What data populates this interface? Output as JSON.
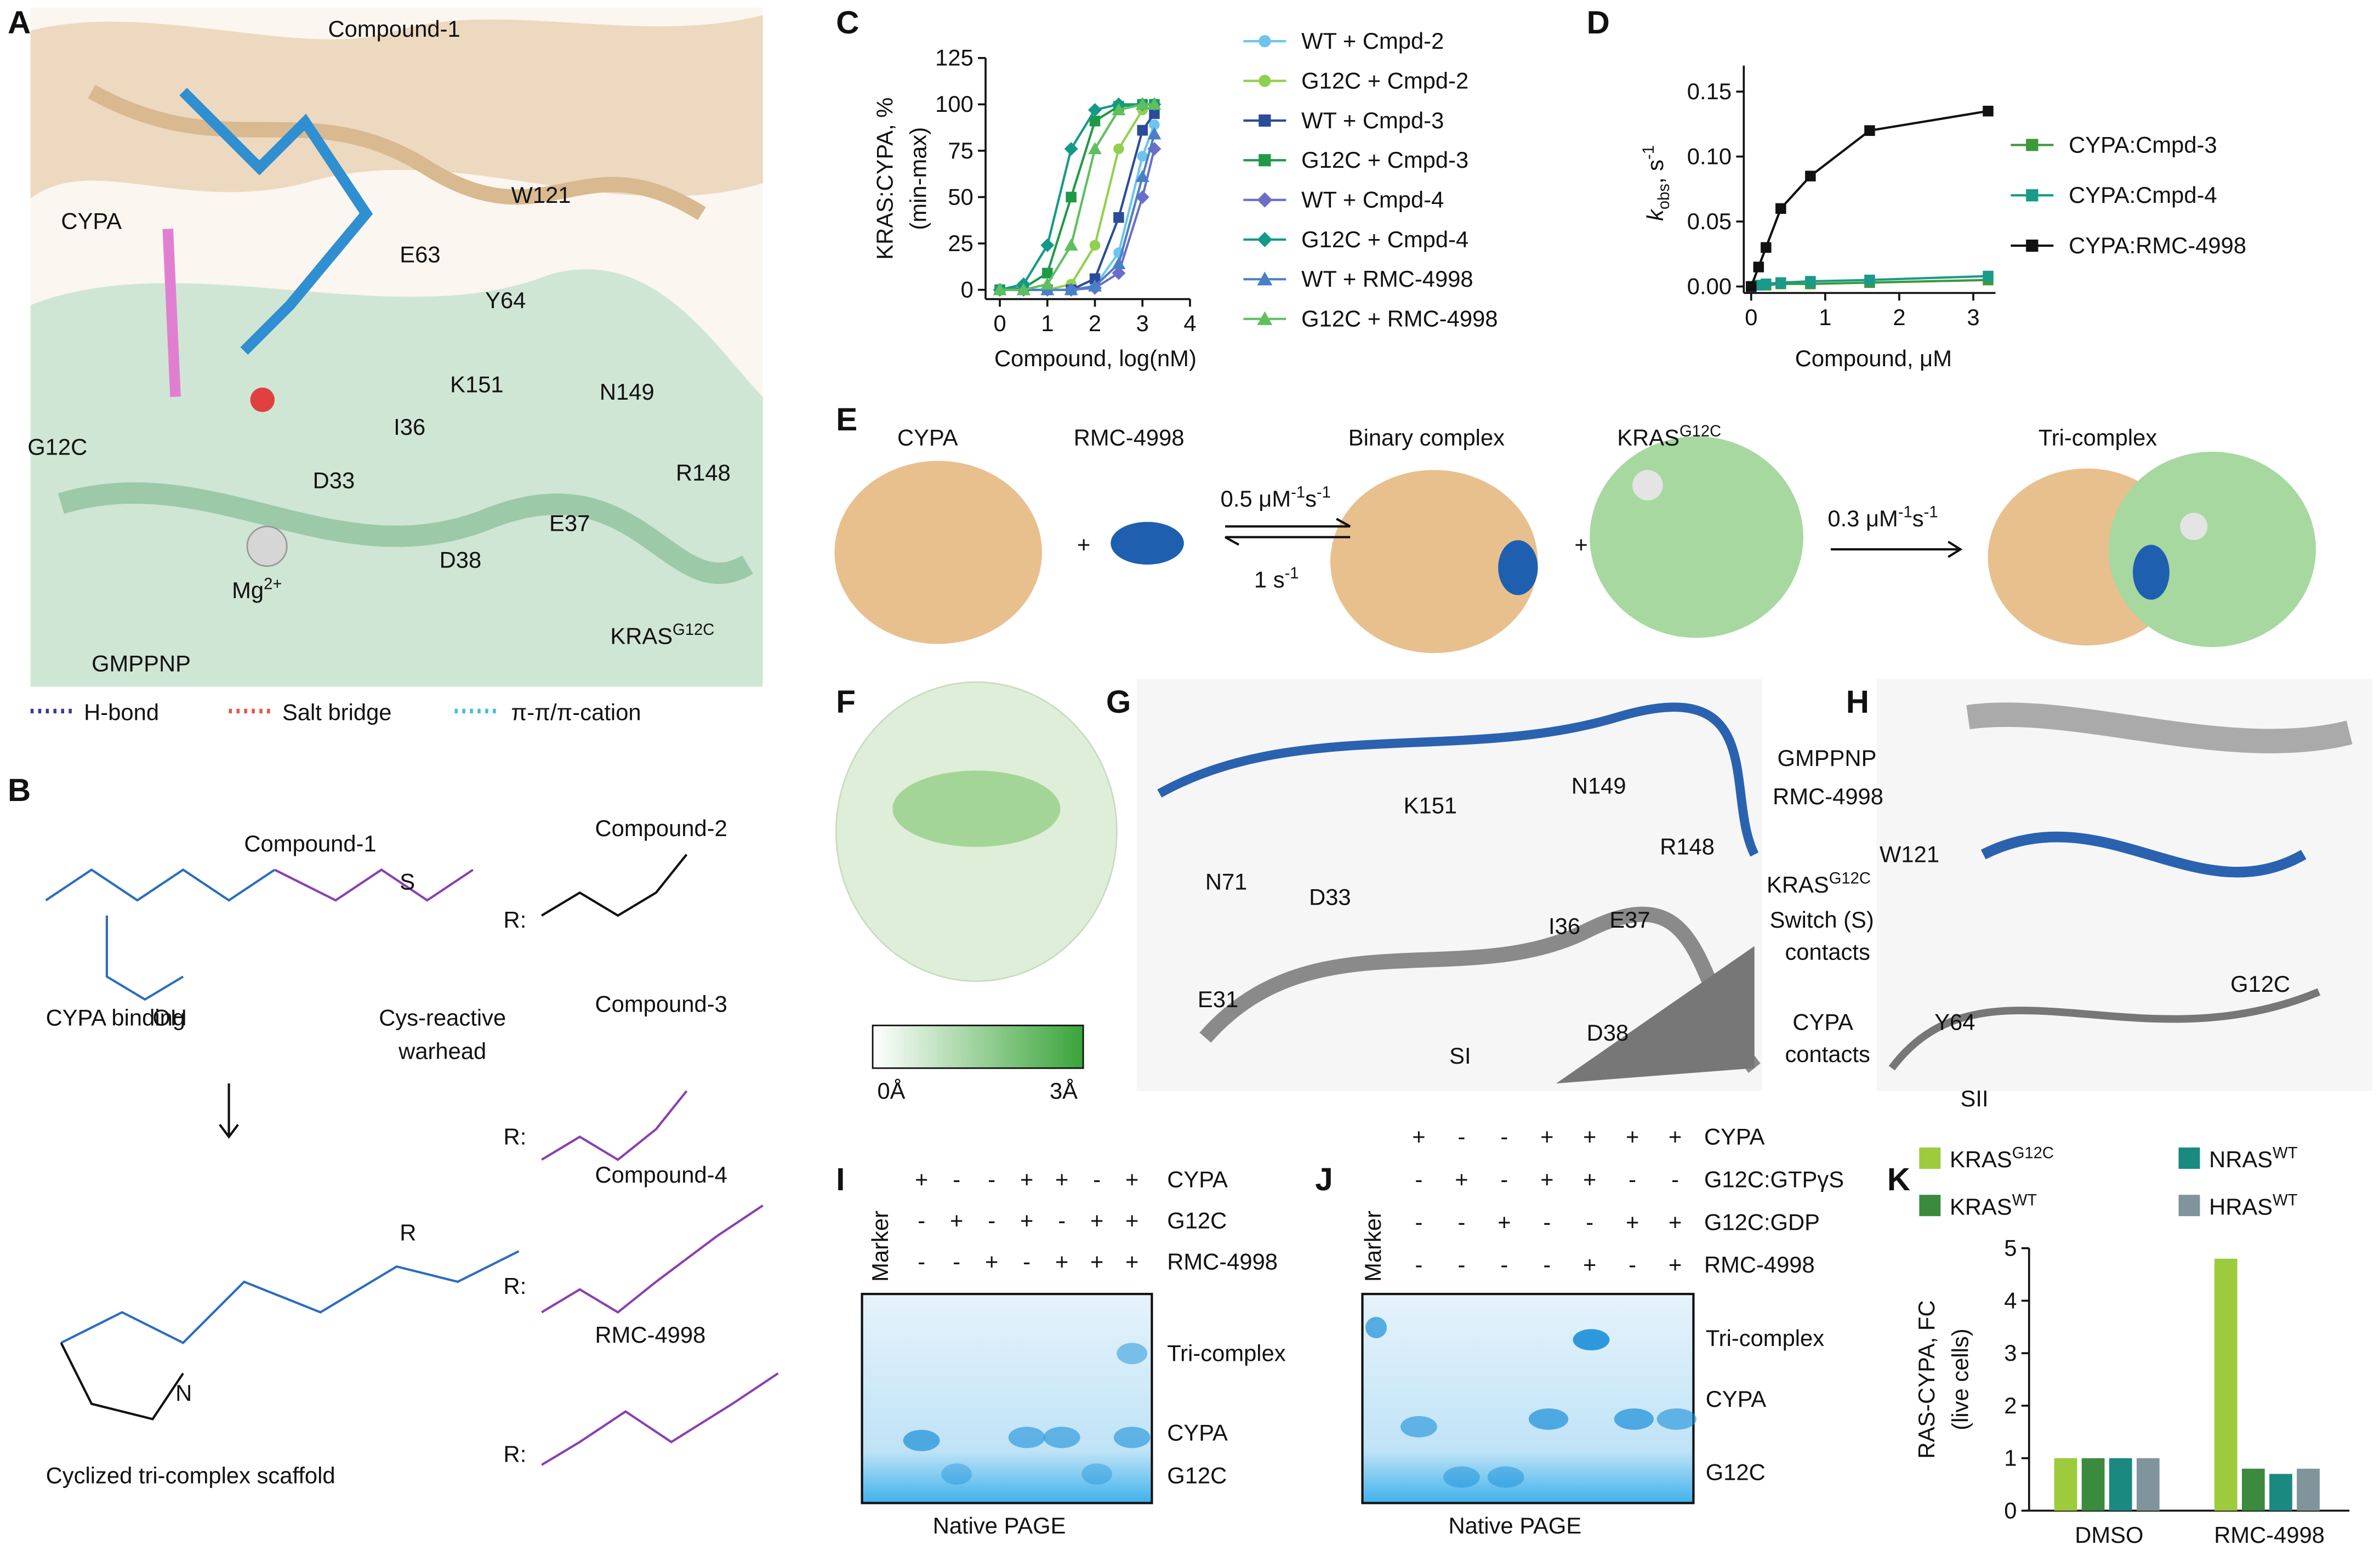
{
  "panels": {
    "a": {
      "label": "A",
      "title": "Compound-1",
      "residues": [
        {
          "text": "CYPA",
          "color": "#c49a66"
        },
        {
          "text": "W121",
          "color": "#c49a66"
        },
        {
          "text": "E63",
          "color": "#1d8a3a"
        },
        {
          "text": "Y64",
          "color": "#1d8a3a"
        },
        {
          "text": "G12C",
          "color": "#1d8a3a"
        },
        {
          "text": "K151",
          "color": "#c49a66"
        },
        {
          "text": "N149",
          "color": "#c49a66"
        },
        {
          "text": "I36",
          "color": "#1d8a3a"
        },
        {
          "text": "D33",
          "color": "#1d8a3a"
        },
        {
          "text": "R148",
          "color": "#c49a66"
        },
        {
          "text": "E37",
          "color": "#1d8a3a"
        },
        {
          "text": "D38",
          "color": "#1d8a3a"
        }
      ],
      "mg": {
        "base": "Mg",
        "sup": "2+"
      },
      "gmppnp": "GMPPNP",
      "kras": {
        "base": "KRAS",
        "sup": "G12C"
      },
      "legend": [
        {
          "text": "H-bond",
          "color": "#3a3a9a"
        },
        {
          "text": "Salt bridge",
          "color": "#e8534a"
        },
        {
          "text": "π-π/π-cation",
          "color": "#40c0e0"
        }
      ]
    },
    "b": {
      "label": "B",
      "compound1": "Compound-1",
      "cypa_binding": "CYPA binding",
      "warhead": [
        "Cys-reactive",
        "warhead"
      ],
      "scaffold": "Cyclized tri-complex scaffold",
      "r": "R:",
      "atoms": [
        "OH",
        "R",
        "S",
        "N"
      ],
      "substituents": [
        "Compound-2",
        "Compound-3",
        "Compound-4",
        "RMC-4998"
      ]
    },
    "e": {
      "label": "E",
      "cypa": "CYPA",
      "rmc": "RMC-4998",
      "binary": "Binary complex",
      "kras": {
        "base": "KRAS",
        "sup": "G12C"
      },
      "tri": "Tri-complex",
      "plus": "+",
      "kon1": [
        "0.5 μM",
        "-1",
        "s",
        "-1"
      ],
      "koff": [
        "1 s",
        "-1"
      ],
      "kon2": [
        "0.3 μM",
        "-1",
        "s",
        "-1"
      ]
    },
    "f": {
      "label": "F",
      "scale": [
        "0Å",
        "3Å"
      ]
    },
    "g": {
      "label": "G",
      "legend": [
        {
          "text": "GMPPNP",
          "color": "#8a8a8a"
        },
        {
          "text": "RMC-4998",
          "color": "#2a62b0"
        }
      ],
      "kras": {
        "base": "KRAS",
        "sup": "G12C",
        "color": "#8a8a8a"
      },
      "switch": {
        "lines": [
          "Switch (S)",
          "contacts"
        ],
        "color": "#1d8a3a"
      },
      "cypa": {
        "lines": [
          "CYPA",
          "contacts"
        ],
        "color": "#c49a66"
      },
      "residues": [
        {
          "text": "K151",
          "color": "#c49a66"
        },
        {
          "text": "N149",
          "color": "#c49a66"
        },
        {
          "text": "N71",
          "color": "#c49a66"
        },
        {
          "text": "D33",
          "color": "#1d8a3a"
        },
        {
          "text": "R148",
          "color": "#c49a66"
        },
        {
          "text": "I36",
          "color": "#1d8a3a"
        },
        {
          "text": "E37",
          "color": "#1d8a3a"
        },
        {
          "text": "E31",
          "color": "#1d8a3a"
        },
        {
          "text": "D38",
          "color": "#1d8a3a"
        },
        {
          "text": "SI",
          "color": "#1d8a3a"
        }
      ]
    },
    "h": {
      "label": "H",
      "residues": [
        {
          "text": "W121",
          "color": "#c49a66"
        },
        {
          "text": "Y64",
          "color": "#1d8a3a"
        },
        {
          "text": "G12C",
          "color": "#1d8a3a"
        },
        {
          "text": "SII",
          "color": "#1d8a3a"
        }
      ]
    },
    "i": {
      "label": "I",
      "marker": "Marker",
      "rows": [
        {
          "name": "CYPA",
          "signs": [
            "+",
            "-",
            "-",
            "+",
            "+",
            "-",
            "+"
          ]
        },
        {
          "name": "G12C",
          "signs": [
            "-",
            "+",
            "-",
            "+",
            "-",
            "+",
            "+"
          ]
        },
        {
          "name": "RMC-4998",
          "signs": [
            "-",
            "-",
            "+",
            "-",
            "+",
            "+",
            "+"
          ]
        }
      ],
      "bands": [
        "Tri-complex",
        "CYPA",
        "G12C"
      ],
      "caption": "Native PAGE"
    },
    "j": {
      "label": "J",
      "marker": "Marker",
      "rows": [
        {
          "name": "CYPA",
          "signs": [
            "+",
            "-",
            "-",
            "+",
            "+",
            "+",
            "+"
          ]
        },
        {
          "name": "G12C:GTPγS",
          "signs": [
            "-",
            "+",
            "-",
            "+",
            "+",
            "-",
            "-"
          ]
        },
        {
          "name": "G12C:GDP",
          "signs": [
            "-",
            "-",
            "+",
            "-",
            "-",
            "+",
            "+"
          ]
        },
        {
          "name": "RMC-4998",
          "signs": [
            "-",
            "-",
            "-",
            "-",
            "+",
            "-",
            "+"
          ]
        }
      ],
      "bands": [
        "Tri-complex",
        "CYPA",
        "G12C"
      ],
      "caption": "Native PAGE"
    }
  },
  "chart_data": [
    {
      "panel": "C",
      "type": "line",
      "ylabel": [
        "KRAS:CYPA, %",
        "(min-max)"
      ],
      "xlabel": "Compound, log(nM)",
      "x": [
        0,
        0.5,
        1,
        1.5,
        2,
        2.5,
        3,
        3.25
      ],
      "xlim": [
        -0.3,
        4
      ],
      "xticks": [
        0,
        1,
        2,
        3,
        4
      ],
      "ylim": [
        -5,
        125
      ],
      "yticks": [
        0,
        25,
        50,
        75,
        100,
        125
      ],
      "series": [
        {
          "name": "WT + Cmpd-2",
          "color": "#6ec4ee",
          "marker": "circle",
          "values": [
            0,
            0,
            0,
            0,
            2,
            20,
            72,
            89
          ]
        },
        {
          "name": "G12C + Cmpd-2",
          "color": "#8fd14f",
          "marker": "circle",
          "values": [
            0,
            0,
            0,
            3,
            24,
            76,
            97,
            99
          ]
        },
        {
          "name": "WT + Cmpd-3",
          "color": "#2b4c9b",
          "marker": "square",
          "values": [
            0,
            0,
            0,
            0,
            6,
            39,
            86,
            95
          ]
        },
        {
          "name": "G12C + Cmpd-3",
          "color": "#1e9a46",
          "marker": "square",
          "values": [
            0,
            1,
            9,
            50,
            91,
            99,
            100,
            100
          ]
        },
        {
          "name": "WT + Cmpd-4",
          "color": "#6a6ec8",
          "marker": "diamond",
          "values": [
            0,
            0,
            0,
            0,
            1,
            9,
            50,
            76
          ]
        },
        {
          "name": "G12C + Cmpd-4",
          "color": "#139a86",
          "marker": "diamond",
          "values": [
            0,
            3,
            24,
            76,
            97,
            100,
            100,
            100
          ]
        },
        {
          "name": "WT + RMC-4998",
          "color": "#4a7fc8",
          "marker": "triangle",
          "values": [
            0,
            0,
            0,
            0,
            2,
            14,
            61,
            84
          ]
        },
        {
          "name": "G12C + RMC-4998",
          "color": "#5fbf5f",
          "marker": "triangle",
          "values": [
            0,
            0,
            3,
            24,
            76,
            97,
            100,
            100
          ]
        }
      ]
    },
    {
      "panel": "D",
      "type": "line",
      "ylabel": {
        "k": "k",
        "sub": "obs",
        "unit": ", s",
        "sup": "-1"
      },
      "xlabel": "Compound, μM",
      "x": [
        0,
        0.1,
        0.2,
        0.4,
        0.8,
        1.6,
        3.2
      ],
      "xlim": [
        -0.1,
        3.3
      ],
      "xticks": [
        0,
        1,
        2,
        3
      ],
      "ylim": [
        -0.005,
        0.17
      ],
      "yticks": [
        {
          "value": 0,
          "label": "0.00"
        },
        0.05,
        {
          "value": 0.1,
          "label": "0.10"
        },
        0.15
      ],
      "series": [
        {
          "name": "CYPA:Cmpd-3",
          "color": "#3a9a3a",
          "marker": "square",
          "values": [
            0,
            0.001,
            0.001,
            0.002,
            0.002,
            0.003,
            0.005
          ]
        },
        {
          "name": "CYPA:Cmpd-4",
          "color": "#1a9a8a",
          "marker": "square",
          "values": [
            0,
            0.001,
            0.002,
            0.003,
            0.004,
            0.005,
            0.008
          ]
        },
        {
          "name": "CYPA:RMC-4998",
          "color": "#111111",
          "marker": "square",
          "values": [
            0,
            0.015,
            0.03,
            0.06,
            0.085,
            0.12,
            0.135
          ]
        }
      ]
    },
    {
      "panel": "K",
      "type": "bar",
      "ylabel": [
        "RAS-CYPA, FC",
        "(live cells)"
      ],
      "categories": [
        "DMSO",
        "RMC-4998"
      ],
      "ylim": [
        0,
        5
      ],
      "yticks": [
        0,
        1,
        2,
        3,
        4,
        5
      ],
      "series": [
        {
          "name": "KRAS",
          "name_sup": "G12C",
          "color": "#9ccc3c",
          "values": [
            1.0,
            4.8
          ]
        },
        {
          "name": "KRAS",
          "name_sup": "WT",
          "color": "#3b8a3e",
          "values": [
            1.0,
            0.8
          ]
        },
        {
          "name": "NRAS",
          "name_sup": "WT",
          "color": "#1a8a80",
          "values": [
            1.0,
            0.7
          ]
        },
        {
          "name": "HRAS",
          "name_sup": "WT",
          "color": "#7f959b",
          "values": [
            1.0,
            0.8
          ]
        }
      ]
    }
  ]
}
